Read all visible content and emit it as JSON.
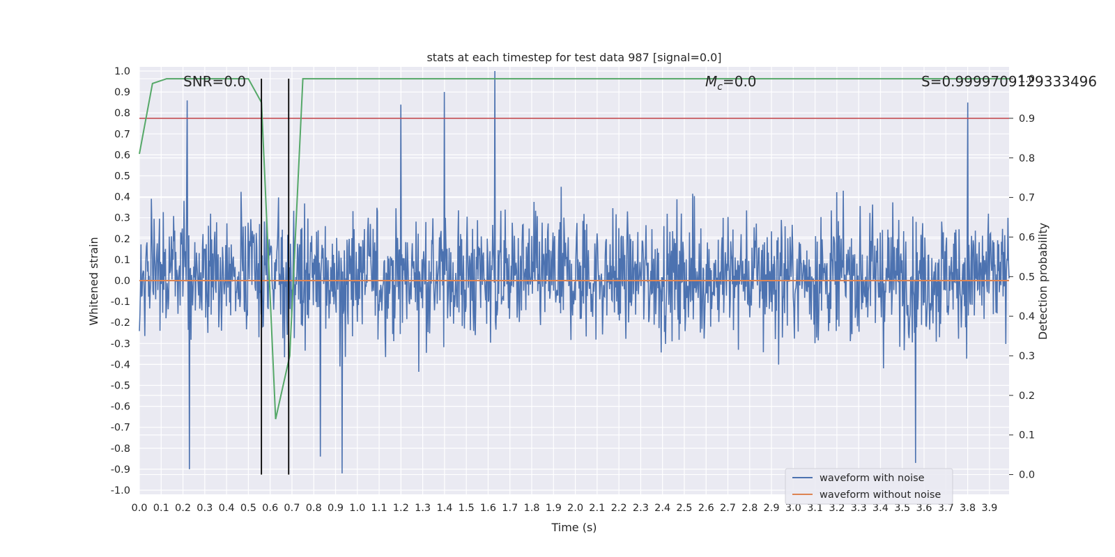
{
  "chart_data": {
    "type": "line",
    "title": "stats at each timestep for test data 987 [signal=0.0]",
    "xlabel": "Time (s)",
    "ylabel": "Whitened strain",
    "y2label": "Detection probability",
    "xlim": [
      0.0,
      3.99
    ],
    "ylim": [
      -1.02,
      1.02
    ],
    "y2lim": [
      -0.05,
      1.03
    ],
    "xticks": [
      "0.0",
      "0.1",
      "0.2",
      "0.3",
      "0.4",
      "0.5",
      "0.6",
      "0.7",
      "0.8",
      "0.9",
      "1.0",
      "1.1",
      "1.2",
      "1.3",
      "1.4",
      "1.5",
      "1.6",
      "1.7",
      "1.8",
      "1.9",
      "2.0",
      "2.1",
      "2.2",
      "2.3",
      "2.4",
      "2.5",
      "2.6",
      "2.7",
      "2.8",
      "2.9",
      "3.0",
      "3.1",
      "3.2",
      "3.3",
      "3.4",
      "3.5",
      "3.6",
      "3.7",
      "3.8",
      "3.9"
    ],
    "yticks": [
      "1.0",
      "0.9",
      "0.8",
      "0.7",
      "0.6",
      "0.5",
      "0.4",
      "0.3",
      "0.2",
      "0.1",
      "0.0",
      "-0.1",
      "-0.2",
      "-0.3",
      "-0.4",
      "-0.5",
      "-0.6",
      "-0.7",
      "-0.8",
      "-0.9",
      "-1.0"
    ],
    "y2ticks": [
      "1.0",
      "0.9",
      "0.8",
      "0.7",
      "0.6",
      "0.5",
      "0.4",
      "0.3",
      "0.2",
      "0.1",
      "0.0"
    ],
    "grid": true,
    "legend_position": "lower-right",
    "annotations": {
      "snr": "SNR=0.0",
      "mc_symbol": "M",
      "mc_subscript": "c",
      "mc_value": "=0.0",
      "s": "S=0.9999709129333496"
    },
    "series": [
      {
        "name": "waveform with noise",
        "color": "#4c72b0",
        "axis": "left",
        "description": "dense whitened noise strain, amplitude mostly between -0.5 and 0.6",
        "peaks": [
          {
            "x": 0.22,
            "y": 0.86
          },
          {
            "x": 1.63,
            "y": 1.0
          },
          {
            "x": 1.4,
            "y": 0.9
          },
          {
            "x": 3.8,
            "y": 0.85
          },
          {
            "x": 1.2,
            "y": 0.84
          },
          {
            "x": 0.23,
            "y": -0.9
          },
          {
            "x": 0.93,
            "y": -0.92
          },
          {
            "x": 3.56,
            "y": -0.87
          },
          {
            "x": 0.83,
            "y": -0.84
          }
        ]
      },
      {
        "name": "waveform without noise",
        "color": "#dd8452",
        "axis": "left",
        "x": [
          0.0,
          3.99
        ],
        "y": [
          0.0,
          0.0
        ]
      },
      {
        "name": "",
        "color": "#55a868",
        "axis": "right",
        "x": [
          0.0,
          0.06,
          0.125,
          0.5,
          0.56,
          0.625,
          0.69,
          0.75,
          3.99
        ],
        "y": [
          0.81,
          0.988,
          1.0,
          1.0,
          0.94,
          0.14,
          0.3,
          1.0,
          1.0
        ]
      },
      {
        "name": "",
        "color": "#c44e52",
        "axis": "right",
        "x": [
          0.0,
          3.99
        ],
        "y": [
          0.9,
          0.9
        ]
      }
    ],
    "vertical_lines": [
      {
        "x": 0.56,
        "color": "#000000"
      },
      {
        "x": 0.685,
        "color": "#000000"
      }
    ],
    "colors": {
      "background": "#eaeaf2",
      "grid": "#ffffff"
    }
  }
}
